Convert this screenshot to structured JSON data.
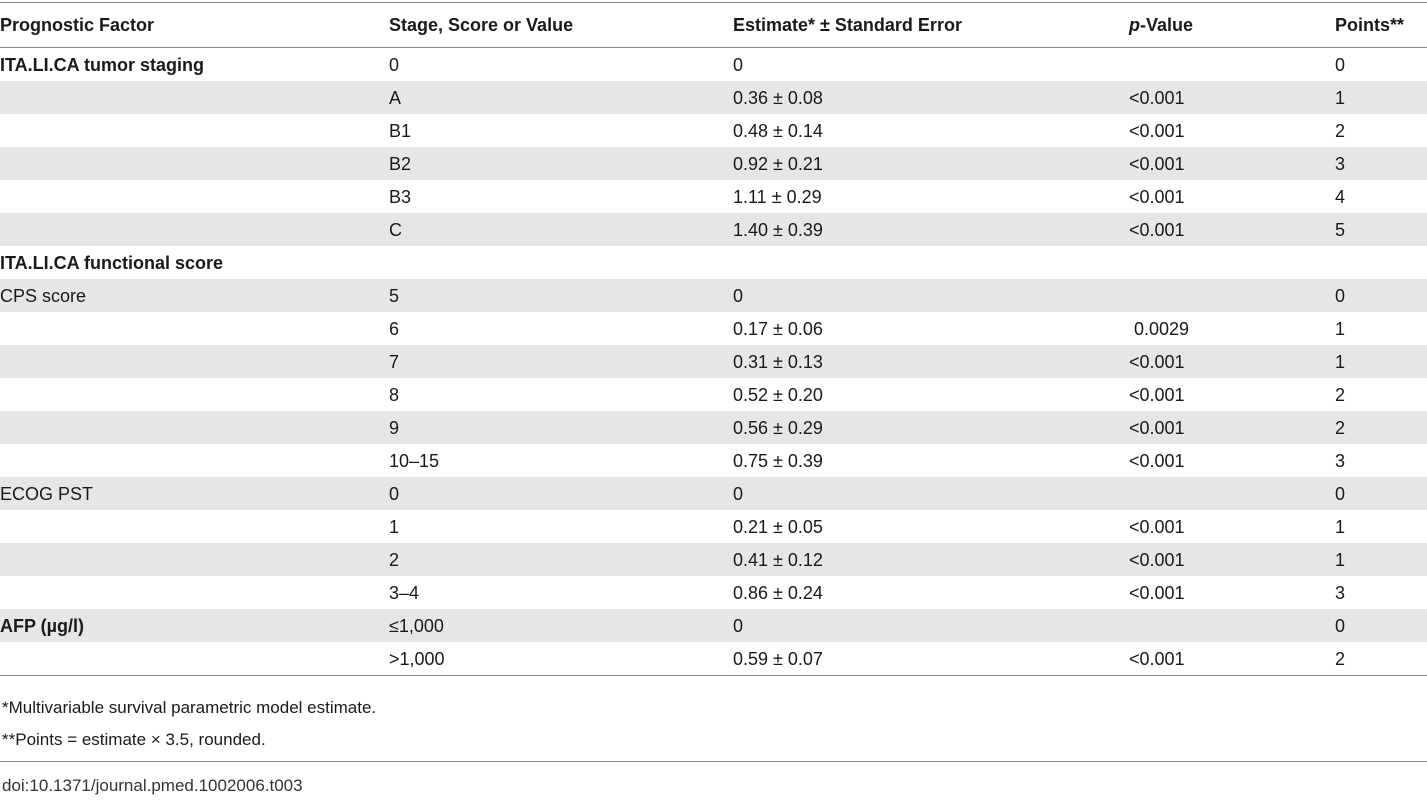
{
  "table": {
    "headers": {
      "factor": "Prognostic Factor",
      "stage": "Stage, Score or Value",
      "estimate": "Estimate* ± Standard Error",
      "p_italic": "p",
      "p_rest": "-Value",
      "points": "Points**"
    },
    "rows": [
      {
        "factor": "ITA.LI.CA tumor staging",
        "stage": "0",
        "estimate": "0",
        "p": "",
        "points": "0"
      },
      {
        "factor": "",
        "stage": "A",
        "estimate": "0.36 ± 0.08",
        "p": "<0.001",
        "points": "1"
      },
      {
        "factor": "",
        "stage": "B1",
        "estimate": "0.48 ± 0.14",
        "p": "<0.001",
        "points": "2"
      },
      {
        "factor": "",
        "stage": "B2",
        "estimate": "0.92 ± 0.21",
        "p": "<0.001",
        "points": "3"
      },
      {
        "factor": "",
        "stage": "B3",
        "estimate": "1.11 ± 0.29",
        "p": "<0.001",
        "points": "4"
      },
      {
        "factor": "",
        "stage": "C",
        "estimate": "1.40 ± 0.39",
        "p": "<0.001",
        "points": "5"
      },
      {
        "factor": "ITA.LI.CA functional score",
        "stage": "",
        "estimate": "",
        "p": "",
        "points": ""
      },
      {
        "factor": "CPS score",
        "stage": "5",
        "estimate": "0",
        "p": "",
        "points": "0"
      },
      {
        "factor": "",
        "stage": "6",
        "estimate": "0.17 ± 0.06",
        "p": " 0.0029",
        "points": "1"
      },
      {
        "factor": "",
        "stage": "7",
        "estimate": "0.31 ± 0.13",
        "p": "<0.001",
        "points": "1"
      },
      {
        "factor": "",
        "stage": "8",
        "estimate": "0.52 ± 0.20",
        "p": "<0.001",
        "points": "2"
      },
      {
        "factor": "",
        "stage": "9",
        "estimate": "0.56 ± 0.29",
        "p": "<0.001",
        "points": "2"
      },
      {
        "factor": "",
        "stage": "10–15",
        "estimate": "0.75 ± 0.39",
        "p": "<0.001",
        "points": "3"
      },
      {
        "factor": "ECOG PST",
        "stage": "0",
        "estimate": "0",
        "p": "",
        "points": "0"
      },
      {
        "factor": "",
        "stage": "1",
        "estimate": "0.21 ± 0.05",
        "p": "<0.001",
        "points": "1"
      },
      {
        "factor": "",
        "stage": "2",
        "estimate": "0.41 ± 0.12",
        "p": "<0.001",
        "points": "1"
      },
      {
        "factor": "",
        "stage": "3–4",
        "estimate": "0.86 ± 0.24",
        "p": "<0.001",
        "points": "3"
      },
      {
        "factor": "AFP (µg/l)",
        "stage": "≤1,000",
        "estimate": "0",
        "p": "",
        "points": "0"
      },
      {
        "factor": "",
        "stage": ">1,000",
        "estimate": "0.59 ± 0.07",
        "p": "<0.001",
        "points": "2"
      }
    ]
  },
  "footnotes": {
    "fn1": "*Multivariable survival parametric model estimate.",
    "fn2": "**Points = estimate × 3.5, rounded."
  },
  "doi": "doi:10.1371/journal.pmed.1002006.t003"
}
